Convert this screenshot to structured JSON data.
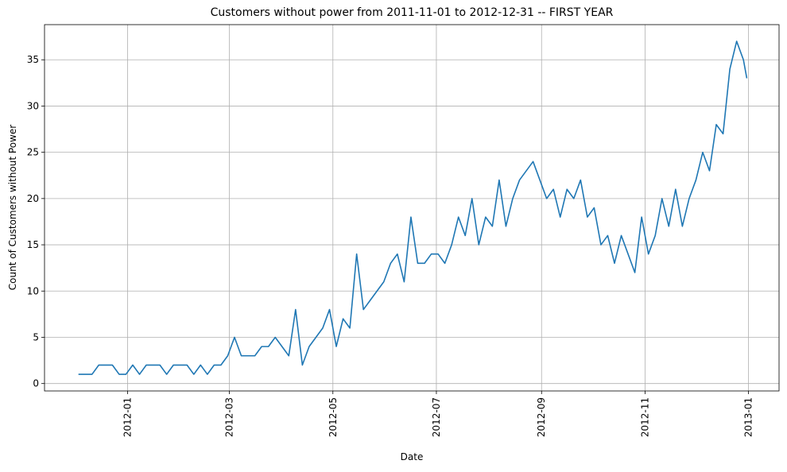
{
  "chart_data": {
    "type": "line",
    "title": "Customers without power from 2011-11-01 to 2012-12-31 -- FIRST YEAR",
    "x_label": "Date",
    "y_label": "Count of Customers without Power",
    "x": [
      "2011-12-03",
      "2011-12-07",
      "2011-12-11",
      "2011-12-15",
      "2011-12-19",
      "2011-12-23",
      "2011-12-27",
      "2011-12-31",
      "2012-01-04",
      "2012-01-08",
      "2012-01-12",
      "2012-01-16",
      "2012-01-20",
      "2012-01-24",
      "2012-01-28",
      "2012-02-01",
      "2012-02-05",
      "2012-02-09",
      "2012-02-13",
      "2012-02-17",
      "2012-02-21",
      "2012-02-25",
      "2012-02-29",
      "2012-03-04",
      "2012-03-08",
      "2012-03-12",
      "2012-03-16",
      "2012-03-20",
      "2012-03-24",
      "2012-03-28",
      "2012-04-01",
      "2012-04-05",
      "2012-04-09",
      "2012-04-13",
      "2012-04-17",
      "2012-04-21",
      "2012-04-25",
      "2012-04-29",
      "2012-05-03",
      "2012-05-07",
      "2012-05-11",
      "2012-05-15",
      "2012-05-19",
      "2012-05-23",
      "2012-05-27",
      "2012-05-31",
      "2012-06-04",
      "2012-06-08",
      "2012-06-12",
      "2012-06-16",
      "2012-06-20",
      "2012-06-24",
      "2012-06-28",
      "2012-07-02",
      "2012-07-06",
      "2012-07-10",
      "2012-07-14",
      "2012-07-18",
      "2012-07-22",
      "2012-07-26",
      "2012-07-30",
      "2012-08-03",
      "2012-08-07",
      "2012-08-11",
      "2012-08-15",
      "2012-08-19",
      "2012-08-23",
      "2012-08-27",
      "2012-08-31",
      "2012-09-04",
      "2012-09-08",
      "2012-09-12",
      "2012-09-16",
      "2012-09-20",
      "2012-09-24",
      "2012-09-28",
      "2012-10-02",
      "2012-10-06",
      "2012-10-10",
      "2012-10-14",
      "2012-10-18",
      "2012-10-22",
      "2012-10-26",
      "2012-10-30",
      "2012-11-03",
      "2012-11-07",
      "2012-11-11",
      "2012-11-15",
      "2012-11-19",
      "2012-11-23",
      "2012-11-27",
      "2012-12-01",
      "2012-12-05",
      "2012-12-09",
      "2012-12-13",
      "2012-12-17",
      "2012-12-21",
      "2012-12-25",
      "2012-12-29",
      "2012-12-31"
    ],
    "series": [
      {
        "name": "Count",
        "color": "#1f77b4",
        "values": [
          1,
          1,
          1,
          2,
          2,
          2,
          1,
          1,
          2,
          1,
          2,
          2,
          2,
          1,
          2,
          2,
          2,
          1,
          2,
          1,
          2,
          2,
          3,
          5,
          3,
          3,
          3,
          4,
          4,
          5,
          4,
          3,
          8,
          2,
          4,
          5,
          6,
          8,
          4,
          7,
          6,
          14,
          8,
          9,
          10,
          11,
          13,
          14,
          11,
          18,
          13,
          13,
          14,
          14,
          13,
          15,
          18,
          16,
          20,
          15,
          18,
          17,
          22,
          17,
          20,
          22,
          23,
          24,
          22,
          20,
          21,
          18,
          21,
          20,
          22,
          18,
          19,
          15,
          16,
          13,
          16,
          14,
          12,
          18,
          14,
          16,
          20,
          17,
          21,
          17,
          20,
          22,
          25,
          23,
          28,
          27,
          34,
          37,
          35,
          33
        ]
      }
    ],
    "xlim": [
      "2011-11-13",
      "2013-01-19"
    ],
    "xticks": [
      {
        "value": "2012-01-01",
        "label": "2012-01"
      },
      {
        "value": "2012-03-01",
        "label": "2012-03"
      },
      {
        "value": "2012-05-01",
        "label": "2012-05"
      },
      {
        "value": "2012-07-01",
        "label": "2012-07"
      },
      {
        "value": "2012-09-01",
        "label": "2012-09"
      },
      {
        "value": "2012-11-01",
        "label": "2012-11"
      },
      {
        "value": "2013-01-01",
        "label": "2013-01"
      }
    ],
    "ylim": [
      -0.8,
      38.8
    ],
    "yticks": [
      0,
      5,
      10,
      15,
      20,
      25,
      30,
      35
    ],
    "grid": true
  }
}
